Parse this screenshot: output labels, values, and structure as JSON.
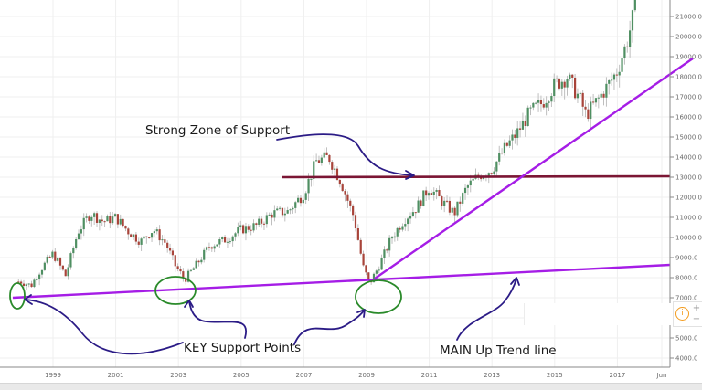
{
  "chart_data": {
    "type": "candlestick",
    "title": "",
    "xlabel": "",
    "ylabel": "",
    "ylim": [
      3400,
      21800
    ],
    "grid": true,
    "y_ticks": [
      "21000.0",
      "20000.0",
      "19000.0",
      "18000.0",
      "17000.0",
      "16000.0",
      "15000.0",
      "14000.0",
      "13000.0",
      "12000.0",
      "11000.0",
      "10000.0",
      "9000.0",
      "8000.0",
      "7000.0",
      "5000.0",
      "4000.0"
    ],
    "x_ticks": [
      "1999",
      "2001",
      "2003",
      "2005",
      "2007",
      "2009",
      "2011",
      "2013",
      "2015",
      "2017",
      "Jun"
    ],
    "approx_price_path": {
      "x": [
        1998.0,
        1998.3,
        1998.6,
        1999.0,
        1999.4,
        1999.8,
        2000.2,
        2000.6,
        2001.0,
        2001.4,
        2001.8,
        2002.2,
        2002.6,
        2002.9,
        2003.2,
        2003.6,
        2004.0,
        2004.5,
        2005.0,
        2005.5,
        2006.0,
        2006.5,
        2007.0,
        2007.4,
        2007.8,
        2008.2,
        2008.6,
        2008.9,
        2009.1,
        2009.4,
        2009.8,
        2010.2,
        2010.6,
        2011.0,
        2011.4,
        2011.8,
        2012.2,
        2012.6,
        2013.0,
        2013.4,
        2013.8,
        2014.2,
        2014.6,
        2015.0,
        2015.4,
        2015.8,
        2016.0,
        2016.4,
        2016.8,
        2017.0,
        2017.3,
        2017.6
      ],
      "close": [
        7800,
        7600,
        8400,
        9200,
        8100,
        10300,
        11200,
        10800,
        11000,
        10300,
        9800,
        10400,
        9700,
        8600,
        7900,
        8700,
        9600,
        9900,
        10400,
        10600,
        11200,
        11300,
        12200,
        13800,
        14000,
        12700,
        11000,
        8500,
        7700,
        8600,
        10000,
        10900,
        11500,
        12500,
        11800,
        11200,
        12500,
        13100,
        13400,
        14400,
        15200,
        16200,
        16700,
        17600,
        18000,
        16900,
        16100,
        16900,
        17800,
        18300,
        19700,
        21600
      ]
    },
    "annotations": [
      {
        "type": "text",
        "label": "Strong Zone of Support"
      },
      {
        "type": "text",
        "label": "KEY Support Points"
      },
      {
        "type": "text",
        "label": "MAIN Up Trend line"
      },
      {
        "type": "horizontal_line",
        "label": "resistance/support",
        "value": 13000,
        "color": "#7b1634"
      },
      {
        "type": "trend_line",
        "label": "main uptrend",
        "from": {
          "x": 1997.8,
          "y": 7000
        },
        "to": {
          "x": 2017.9,
          "y": 8700
        },
        "color": "#a51de6"
      },
      {
        "type": "trend_line",
        "label": "steep uptrend",
        "from": {
          "x": 2009.2,
          "y": 7900
        },
        "to": {
          "x": 2017.9,
          "y": 18900
        },
        "color": "#a51de6"
      },
      {
        "type": "circle",
        "label": "support point 1998",
        "x": 1998.1,
        "y": 7300,
        "color": "#2a8a2a"
      },
      {
        "type": "circle",
        "label": "support point 2003",
        "x": 2002.9,
        "y": 7500,
        "color": "#2a8a2a"
      },
      {
        "type": "circle",
        "label": "support point 2009",
        "x": 2009.2,
        "y": 7300,
        "color": "#2a8a2a"
      }
    ],
    "colors": {
      "up": "#4f8f62",
      "down": "#a8443a",
      "wick": "#b8b8b8",
      "trend": "#a51de6",
      "zone": "#7b1634",
      "circle": "#2a8a2a",
      "arrow": "#2b1b86"
    }
  },
  "annotations_text": {
    "zone": "Strong Zone of Support",
    "key": "KEY Support Points",
    "main": "MAIN Up Trend line"
  },
  "controls": {
    "info_icon": "i",
    "zoom_in": "+",
    "zoom_out": "−"
  }
}
